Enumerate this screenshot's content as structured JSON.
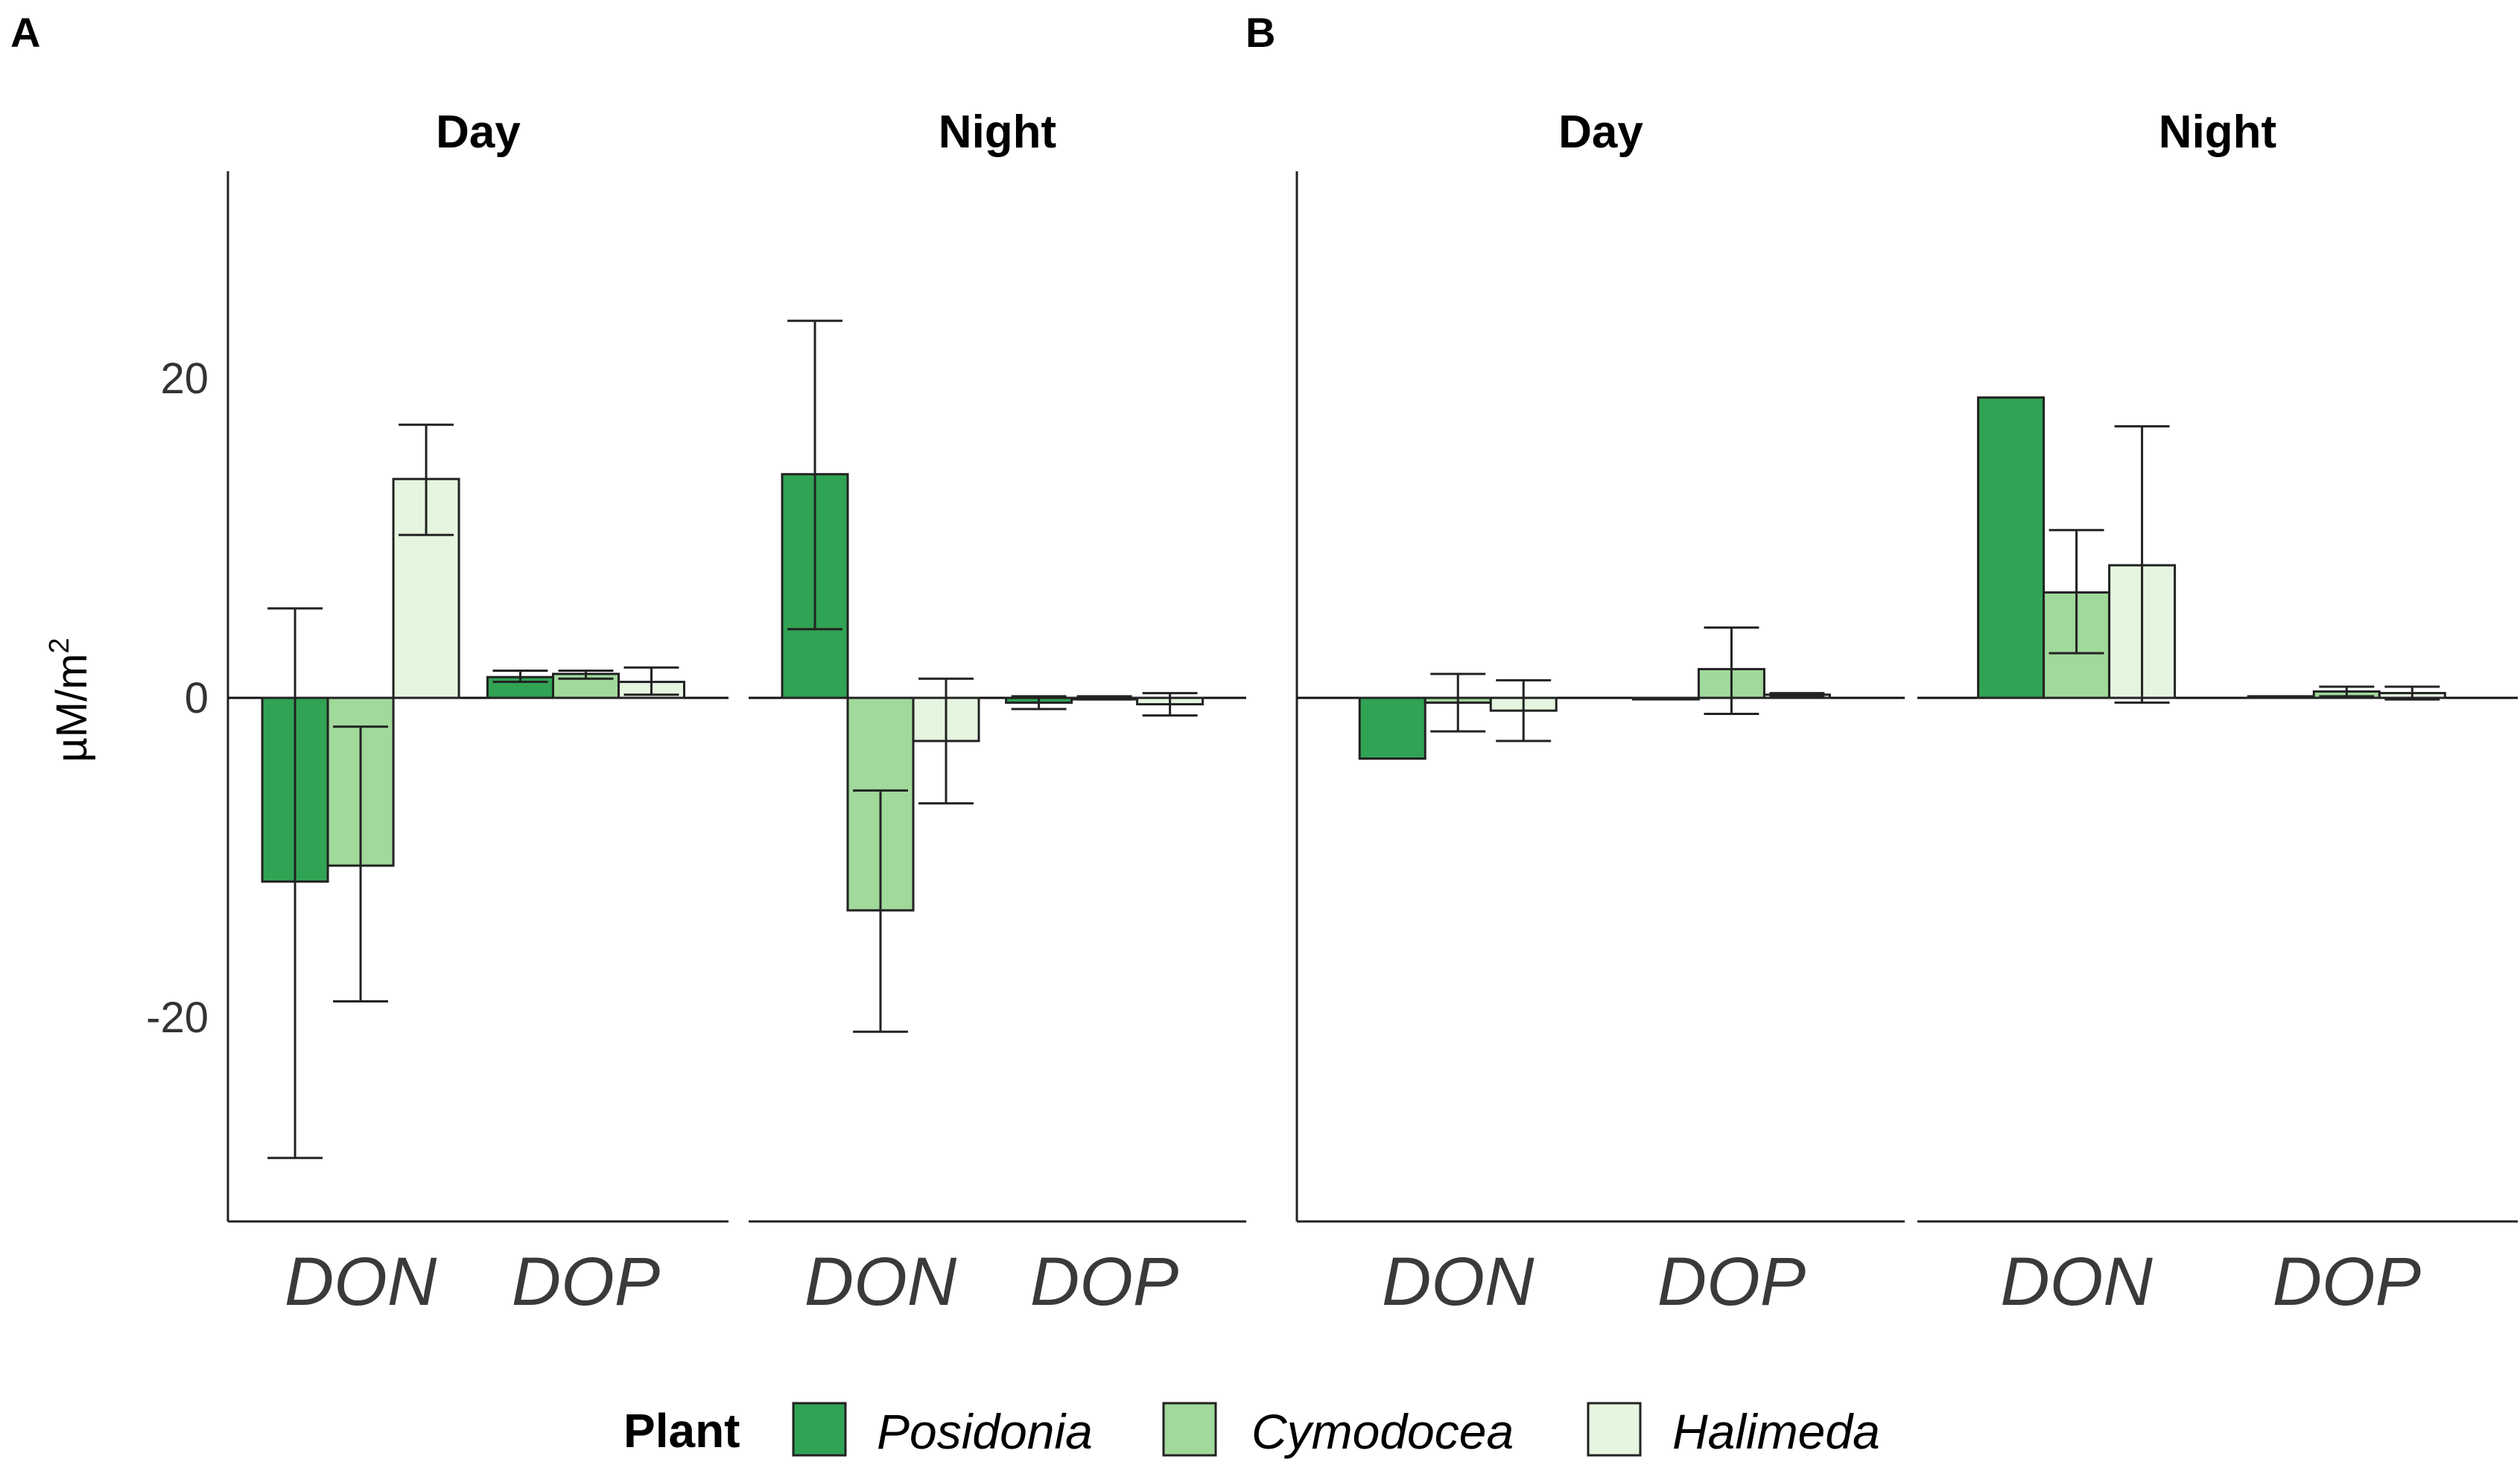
{
  "chart_data": {
    "type": "bar",
    "ylabel": "µM/m",
    "ylabel_superscript": "2",
    "ylim": [
      -33,
      33
    ],
    "y_ticks": [
      20,
      0,
      -20
    ],
    "y_tick_labels": [
      "20",
      "0",
      "-20"
    ],
    "categories": [
      "DON",
      "DOP"
    ],
    "legend": {
      "title": "Plant",
      "position": "bottom",
      "entries": [
        {
          "name": "Posidonia",
          "color": "#31a354"
        },
        {
          "name": "Cymodocea",
          "color": "#a1d99b"
        },
        {
          "name": "Halimeda",
          "color": "#e5f5e0"
        }
      ]
    },
    "panels": [
      {
        "letter": "A",
        "facets": [
          {
            "title": "Day",
            "series": [
              {
                "name": "Posidonia",
                "values": [
                  -11.5,
                  1.3
                ],
                "error_low": [
                  -28.8,
                  1.0
                ],
                "error_high": [
                  5.6,
                  1.7
                ]
              },
              {
                "name": "Cymodocea",
                "values": [
                  -10.5,
                  1.5
                ],
                "error_low": [
                  -19.0,
                  1.2
                ],
                "error_high": [
                  -1.8,
                  1.7
                ]
              },
              {
                "name": "Halimeda",
                "values": [
                  13.7,
                  1.0
                ],
                "error_low": [
                  10.2,
                  0.2
                ],
                "error_high": [
                  17.1,
                  1.9
                ]
              }
            ]
          },
          {
            "title": "Night",
            "series": [
              {
                "name": "Posidonia",
                "values": [
                  14.0,
                  -0.3
                ],
                "error_low": [
                  4.3,
                  -0.7
                ],
                "error_high": [
                  23.6,
                  0.1
                ]
              },
              {
                "name": "Cymodocea",
                "values": [
                  -13.3,
                  0.0
                ],
                "error_low": [
                  -20.9,
                  -0.1
                ],
                "error_high": [
                  -5.8,
                  0.1
                ]
              },
              {
                "name": "Halimeda",
                "values": [
                  -2.7,
                  -0.4
                ],
                "error_low": [
                  -6.6,
                  -1.1
                ],
                "error_high": [
                  1.2,
                  0.3
                ]
              }
            ]
          }
        ]
      },
      {
        "letter": "B",
        "facets": [
          {
            "title": "Day",
            "series": [
              {
                "name": "Posidonia",
                "values": [
                  -3.8,
                  0.0
                ],
                "error_low": null,
                "error_high": null
              },
              {
                "name": "Cymodocea",
                "values": [
                  -0.3,
                  1.8
                ],
                "error_low": [
                  -2.1,
                  -1.0
                ],
                "error_high": [
                  1.5,
                  4.4
                ]
              },
              {
                "name": "Halimeda",
                "values": [
                  -0.8,
                  0.2
                ],
                "error_low": [
                  -2.7,
                  0.1
                ],
                "error_high": [
                  1.1,
                  0.3
                ]
              }
            ]
          },
          {
            "title": "Night",
            "series": [
              {
                "name": "Posidonia",
                "values": [
                  18.8,
                  0.1
                ],
                "error_low": null,
                "error_high": null
              },
              {
                "name": "Cymodocea",
                "values": [
                  6.6,
                  0.4
                ],
                "error_low": [
                  2.8,
                  0.1
                ],
                "error_high": [
                  10.5,
                  0.7
                ]
              },
              {
                "name": "Halimeda",
                "values": [
                  8.3,
                  0.3
                ],
                "error_low": [
                  -0.3,
                  -0.1
                ],
                "error_high": [
                  17.0,
                  0.7
                ]
              }
            ]
          }
        ]
      }
    ]
  }
}
